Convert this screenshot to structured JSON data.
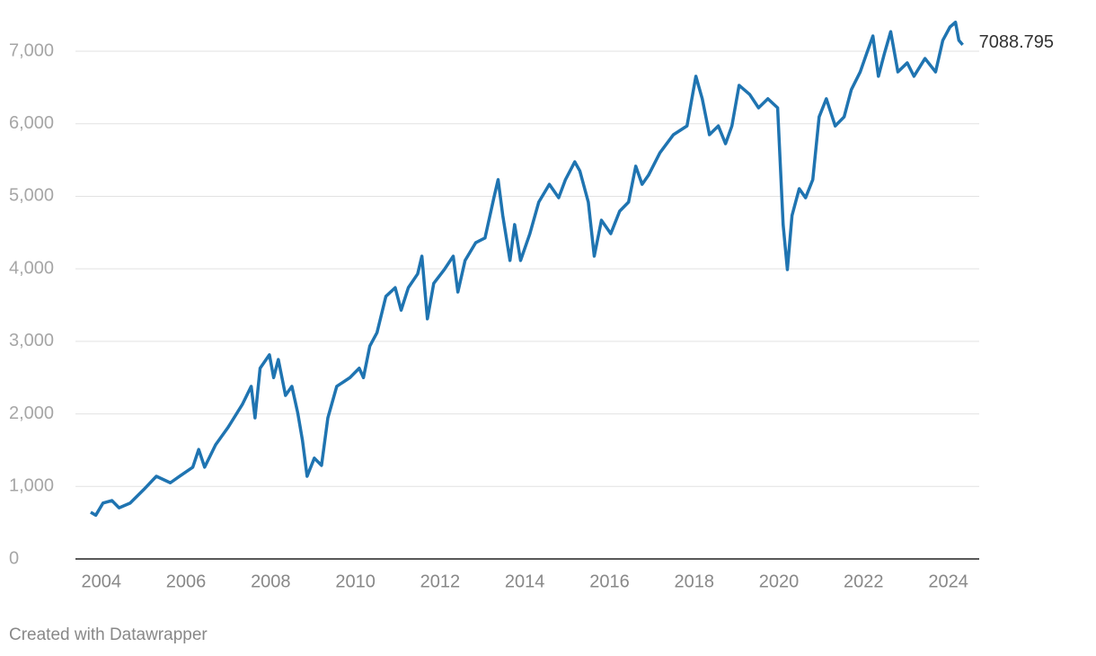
{
  "chart_data": {
    "type": "line",
    "credit": "Created with Datawrapper",
    "x": [
      2003.75,
      2003.87,
      2004.04,
      2004.25,
      2004.42,
      2004.68,
      2005.0,
      2005.3,
      2005.63,
      2005.85,
      2006.16,
      2006.3,
      2006.44,
      2006.7,
      2007.0,
      2007.33,
      2007.54,
      2007.63,
      2007.75,
      2007.97,
      2008.07,
      2008.18,
      2008.35,
      2008.5,
      2008.64,
      2008.75,
      2008.86,
      2009.03,
      2009.2,
      2009.35,
      2009.56,
      2009.87,
      2010.09,
      2010.19,
      2010.34,
      2010.51,
      2010.72,
      2010.94,
      2011.08,
      2011.25,
      2011.47,
      2011.57,
      2011.7,
      2011.85,
      2012.1,
      2012.31,
      2012.42,
      2012.59,
      2012.84,
      2013.06,
      2013.27,
      2013.37,
      2013.48,
      2013.65,
      2013.76,
      2013.9,
      2014.12,
      2014.33,
      2014.58,
      2014.8,
      2014.96,
      2015.18,
      2015.3,
      2015.5,
      2015.64,
      2015.81,
      2016.03,
      2016.24,
      2016.45,
      2016.62,
      2016.77,
      2016.92,
      2017.19,
      2017.51,
      2017.83,
      2018.04,
      2018.19,
      2018.36,
      2018.57,
      2018.74,
      2018.89,
      2019.06,
      2019.31,
      2019.52,
      2019.74,
      2019.97,
      2020.1,
      2020.2,
      2020.31,
      2020.48,
      2020.63,
      2020.8,
      2020.95,
      2021.12,
      2021.33,
      2021.54,
      2021.71,
      2021.92,
      2022.07,
      2022.22,
      2022.35,
      2022.49,
      2022.64,
      2022.81,
      2023.03,
      2023.19,
      2023.45,
      2023.7,
      2023.87,
      2024.04,
      2024.17,
      2024.25,
      2024.34
    ],
    "series": [
      {
        "color": "#1f74b1",
        "values": [
          645,
          603,
          770,
          805,
          705,
          770,
          955,
          1140,
          1050,
          1140,
          1265,
          1510,
          1265,
          1575,
          1820,
          2130,
          2380,
          1945,
          2630,
          2815,
          2500,
          2750,
          2255,
          2380,
          2010,
          1635,
          1140,
          1390,
          1290,
          1945,
          2380,
          2500,
          2630,
          2500,
          2935,
          3120,
          3620,
          3740,
          3430,
          3740,
          3930,
          4175,
          3310,
          3800,
          3990,
          4175,
          3680,
          4115,
          4360,
          4425,
          4980,
          5230,
          4735,
          4115,
          4610,
          4115,
          4485,
          4920,
          5165,
          4980,
          5230,
          5475,
          5350,
          4920,
          4175,
          4670,
          4485,
          4795,
          4920,
          5415,
          5165,
          5290,
          5600,
          5850,
          5970,
          6655,
          6345,
          5850,
          5970,
          5725,
          5970,
          6530,
          6405,
          6220,
          6345,
          6220,
          4610,
          3990,
          4735,
          5105,
          4980,
          5230,
          6095,
          6345,
          5970,
          6095,
          6470,
          6715,
          6965,
          7210,
          6655,
          6965,
          7270,
          6715,
          6840,
          6655,
          6900,
          6715,
          7150,
          7335,
          7400,
          7150,
          7088.795
        ]
      }
    ],
    "xlim": [
      2003.39,
      2024.73
    ],
    "xticks": [
      2004,
      2006,
      2008,
      2010,
      2012,
      2014,
      2016,
      2018,
      2020,
      2022,
      2024
    ],
    "ylim": [
      0,
      7500
    ],
    "yticks": [
      0,
      {
        "value": 1000,
        "label": "1,000"
      },
      {
        "value": 2000,
        "label": "2,000"
      },
      {
        "value": 3000,
        "label": "3,000"
      },
      {
        "value": 4000,
        "label": "4,000"
      },
      {
        "value": 5000,
        "label": "5,000"
      },
      {
        "value": 6000,
        "label": "6,000"
      },
      {
        "value": 7000,
        "label": "7,000"
      }
    ],
    "grid": true
  }
}
